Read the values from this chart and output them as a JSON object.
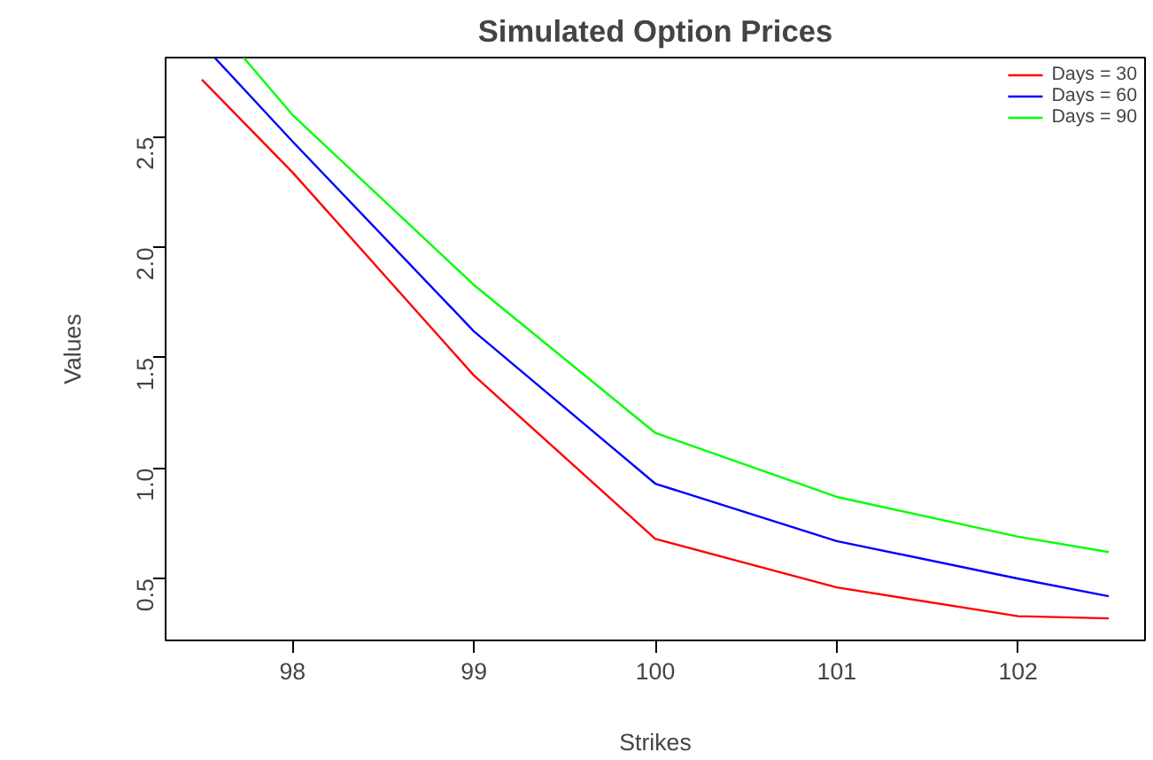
{
  "chart_data": {
    "type": "line",
    "title": "Simulated Option Prices",
    "xlabel": "Strikes",
    "ylabel": "Values",
    "x": [
      97.5,
      98,
      99,
      100,
      101,
      102,
      102.5
    ],
    "series": [
      {
        "name": "Days = 30",
        "color": "#ff0000",
        "values": [
          2.76,
          2.34,
          1.42,
          0.68,
          0.46,
          0.33,
          0.32
        ]
      },
      {
        "name": "Days = 60",
        "color": "#0000ff",
        "x": [
          97.57,
          98,
          99,
          100,
          101,
          102,
          102.5
        ],
        "values": [
          2.86,
          2.48,
          1.62,
          0.93,
          0.67,
          0.5,
          0.42
        ]
      },
      {
        "name": "Days = 90",
        "color": "#00ff00",
        "x": [
          97.73,
          98,
          99,
          100,
          101,
          102,
          102.5
        ],
        "values": [
          2.86,
          2.6,
          1.83,
          1.16,
          0.87,
          0.69,
          0.62
        ]
      }
    ],
    "xlim": [
      97.3,
      102.7
    ],
    "ylim": [
      0.22,
      2.86
    ],
    "xticks": [
      98,
      99,
      100,
      101,
      102
    ],
    "yticks": [
      {
        "value": 0.5,
        "label": "0.5"
      },
      {
        "value": 1.0,
        "label": "1.0"
      },
      {
        "value": 1.5,
        "label": "1.5"
      },
      {
        "value": 2.0,
        "label": "2.0"
      },
      {
        "value": 2.5,
        "label": "2.5"
      }
    ],
    "grid": false,
    "legend": "top right",
    "marker": "none",
    "line_style": "solid"
  }
}
